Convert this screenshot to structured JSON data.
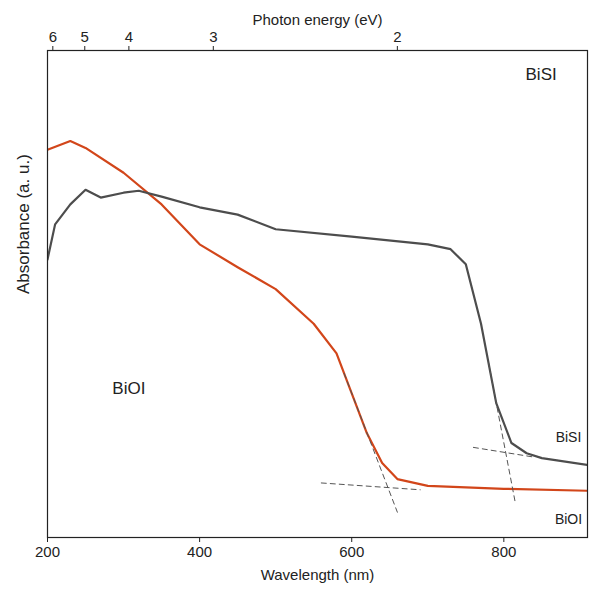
{
  "chart_data": {
    "type": "line",
    "xlabel": "Wavelength (nm)",
    "ylabel": "Absorbance (a. u.)",
    "x2label": "Photon energy (eV)",
    "xlim": [
      200,
      910
    ],
    "ylim": [
      0,
      100
    ],
    "xticks": [
      200,
      400,
      600,
      800
    ],
    "x2ticks": [
      {
        "value": 207,
        "label": "6"
      },
      {
        "value": 249,
        "label": "5"
      },
      {
        "value": 307,
        "label": "4"
      },
      {
        "value": 418,
        "label": "3"
      },
      {
        "value": 660,
        "label": "2"
      }
    ],
    "tick_labels": "x",
    "series": [
      {
        "name": "BiOI",
        "color": "#d2461a",
        "line_style": "solid",
        "label_x": 885,
        "label_y": 3.7,
        "x": [
          200,
          230,
          250,
          300,
          350,
          400,
          450,
          500,
          550,
          580,
          600,
          620,
          640,
          660,
          700,
          800,
          910
        ],
        "values": [
          79.6,
          81.4,
          80,
          74.9,
          68.4,
          60.2,
          55.5,
          51,
          43.9,
          37.8,
          29.6,
          21.4,
          15.3,
          12,
          10.6,
          10,
          9.6
        ]
      },
      {
        "name": "BiSI",
        "color": "#4d4d4d",
        "line_style": "solid",
        "label_x": 885,
        "label_y": 20.5,
        "x": [
          200,
          210,
          230,
          250,
          270,
          300,
          320,
          350,
          400,
          450,
          500,
          600,
          700,
          730,
          750,
          770,
          790,
          810,
          830,
          850,
          910
        ],
        "values": [
          57.1,
          64.3,
          68.4,
          71.4,
          69.8,
          70.8,
          71.2,
          70,
          67.8,
          66.3,
          63.3,
          61.8,
          60.2,
          59.2,
          56.1,
          43.9,
          27.6,
          19.4,
          17.3,
          16.3,
          14.9
        ]
      }
    ],
    "tangents": [
      {
        "color": "#555555",
        "line_style": "dashed",
        "x": [
          590,
          660
        ],
        "values": [
          33.7,
          5.2
        ]
      },
      {
        "color": "#555555",
        "line_style": "dashed",
        "x": [
          560,
          690
        ],
        "values": [
          11.2,
          9.8
        ]
      },
      {
        "color": "#555555",
        "line_style": "dashed",
        "x": [
          780,
          815
        ],
        "values": [
          35.8,
          7.2
        ]
      },
      {
        "color": "#555555",
        "line_style": "dashed",
        "x": [
          760,
          840
        ],
        "values": [
          18.5,
          16.5
        ]
      }
    ],
    "annotations": [
      {
        "text": "BiSI",
        "x": 849,
        "y": 95
      },
      {
        "text": "BiOI",
        "x": 307,
        "y": 30.6
      }
    ]
  }
}
